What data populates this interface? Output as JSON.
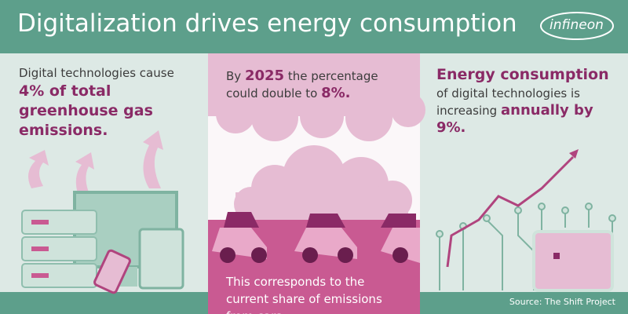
{
  "header": {
    "title": "Digitalization drives energy consumption",
    "logo": "infineon"
  },
  "panels": [
    {
      "intro": "Digital technologies cause",
      "highlight": "4% of total greenhouse gas emissions."
    },
    {
      "lead": "By",
      "year": "2025",
      "middle": "the percentage could double to",
      "highlight": "8%.",
      "footer": "This corresponds to the current share of emissions from cars."
    },
    {
      "highlight_top": "Energy consumption",
      "middle": "of digital technologies is increasing",
      "highlight": "annually by 9%."
    }
  ],
  "source": "Source: The Shift Project"
}
